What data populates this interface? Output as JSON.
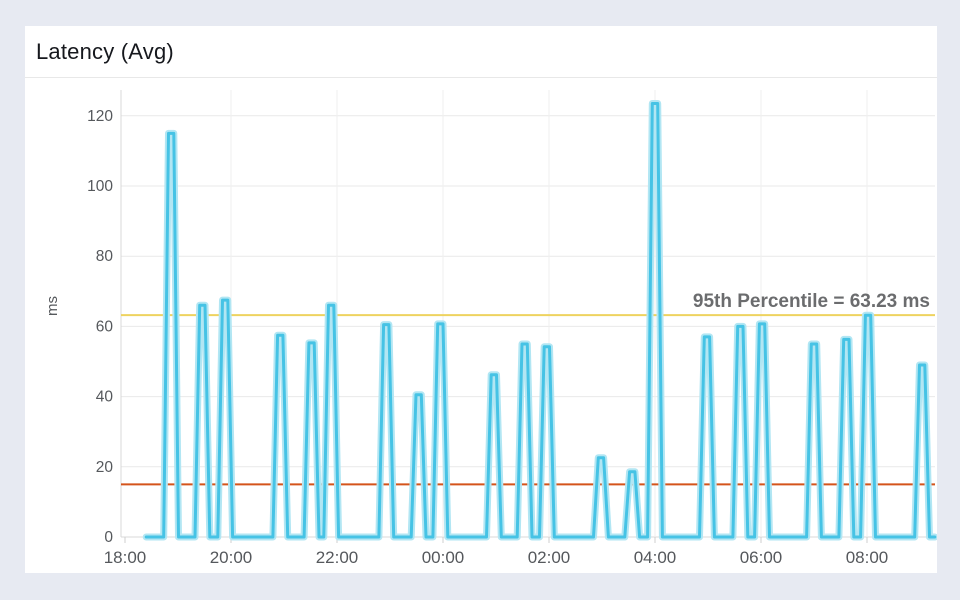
{
  "window": {
    "background_color": "#e7eaf2",
    "card_background_color": "#ffffff"
  },
  "header": {
    "title": "Latency (Avg)"
  },
  "chart_data": {
    "type": "line",
    "title": "Latency (Avg)",
    "xlabel": "",
    "ylabel": "ms",
    "ylim": [
      0,
      120
    ],
    "yticks": [
      0,
      20,
      40,
      60,
      80,
      100,
      120
    ],
    "xtick_labels": [
      "18:00",
      "20:00",
      "22:00",
      "00:00",
      "02:00",
      "04:00",
      "06:00",
      "08:00"
    ],
    "xtick_hours": [
      0,
      2,
      4,
      6,
      8,
      10,
      12,
      14
    ],
    "x_range_hours": [
      0,
      15.28
    ],
    "grid": true,
    "legend_position": "none",
    "series": [
      {
        "name": "Latency (Avg)",
        "color": "#46c3e5",
        "halo_color": "#b2e6f3",
        "baseline_ms": 0,
        "start_hour": 0.4,
        "end_hour": 15.28,
        "spikes": [
          {
            "time": "18:52",
            "t": 0.87,
            "ms": 115
          },
          {
            "time": "19:28",
            "t": 1.46,
            "ms": 66
          },
          {
            "time": "19:53",
            "t": 1.89,
            "ms": 67.5
          },
          {
            "time": "20:56",
            "t": 2.93,
            "ms": 57.5
          },
          {
            "time": "21:31",
            "t": 3.52,
            "ms": 55.3
          },
          {
            "time": "21:53",
            "t": 3.89,
            "ms": 66
          },
          {
            "time": "22:56",
            "t": 4.93,
            "ms": 60.5
          },
          {
            "time": "23:32",
            "t": 5.54,
            "ms": 40.5
          },
          {
            "time": "23:57",
            "t": 5.95,
            "ms": 60.7
          },
          {
            "time": "00:58",
            "t": 6.96,
            "ms": 46.2
          },
          {
            "time": "01:32",
            "t": 7.54,
            "ms": 55
          },
          {
            "time": "01:58",
            "t": 7.96,
            "ms": 54.2
          },
          {
            "time": "02:59",
            "t": 8.98,
            "ms": 22.6
          },
          {
            "time": "03:34",
            "t": 9.57,
            "ms": 18.6
          },
          {
            "time": "04:00",
            "t": 10.0,
            "ms": 123.5
          },
          {
            "time": "04:59",
            "t": 10.98,
            "ms": 57
          },
          {
            "time": "05:37",
            "t": 11.61,
            "ms": 60
          },
          {
            "time": "06:01",
            "t": 12.02,
            "ms": 60.7
          },
          {
            "time": "07:00",
            "t": 13.0,
            "ms": 55
          },
          {
            "time": "07:37",
            "t": 13.61,
            "ms": 56.3
          },
          {
            "time": "08:01",
            "t": 14.02,
            "ms": 63.2
          },
          {
            "time": "09:02",
            "t": 15.04,
            "ms": 49
          }
        ]
      }
    ],
    "reference_lines": [
      {
        "name": "95th-percentile",
        "label": "95th Percentile = 63.23 ms",
        "value_ms": 63.23,
        "color": "#eed35f",
        "label_color": "#6b6c6e"
      },
      {
        "name": "lower-threshold",
        "label": "",
        "value_ms": 15,
        "color": "#d4541b",
        "label_color": ""
      }
    ],
    "colors": {
      "grid": "#e9e9e9",
      "axis": "#d8d8d8",
      "tick_text": "#55585c"
    }
  }
}
